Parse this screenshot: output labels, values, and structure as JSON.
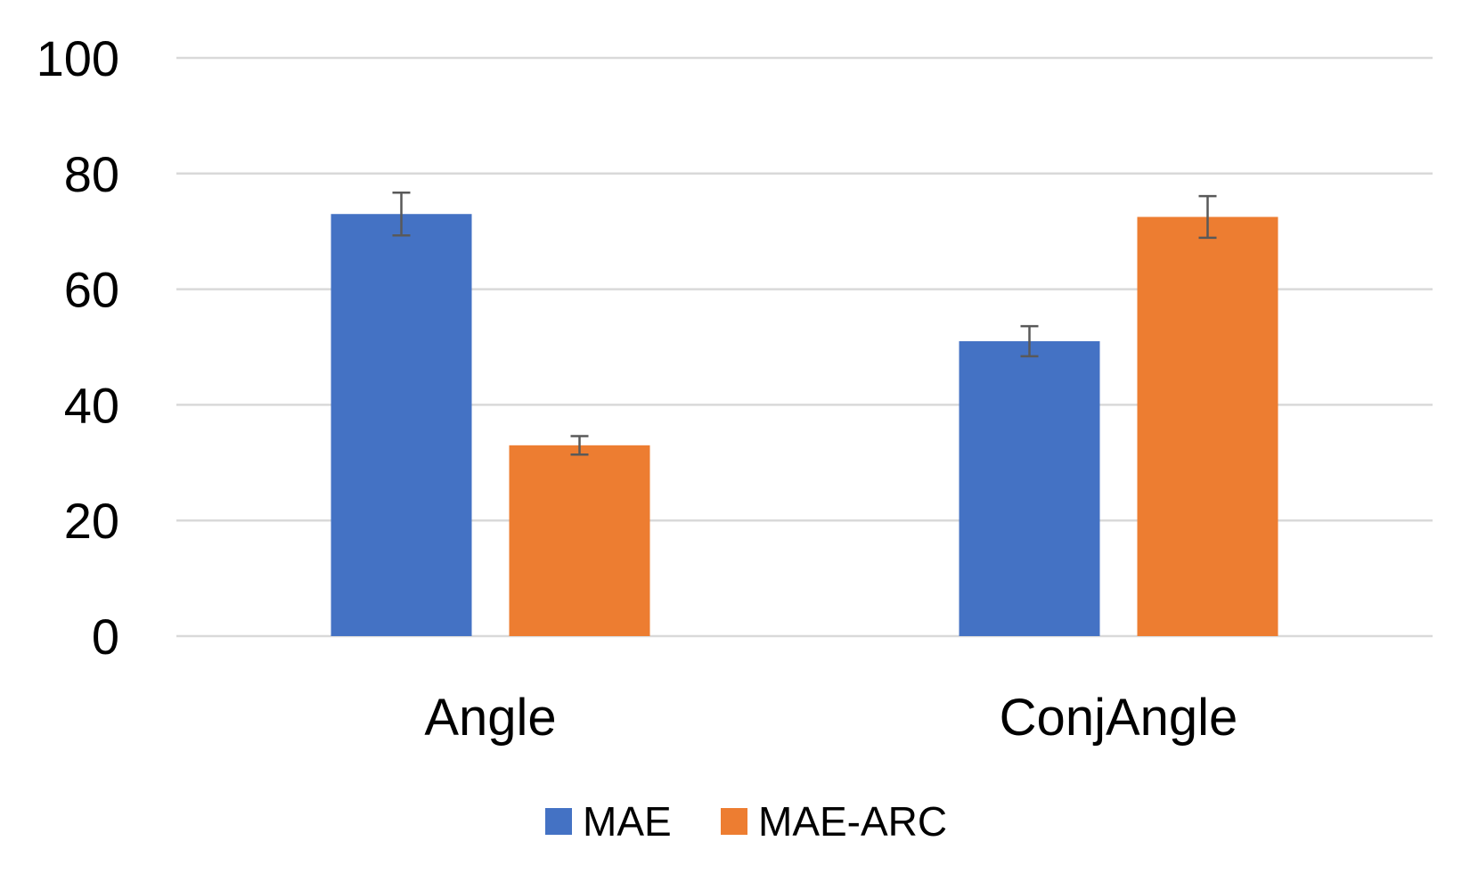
{
  "chart_data": {
    "type": "bar",
    "categories": [
      "Angle",
      "ConjAngle"
    ],
    "series": [
      {
        "name": "MAE",
        "values": [
          73,
          51
        ],
        "errors": [
          3.7,
          2.6
        ],
        "color": "#4472C4"
      },
      {
        "name": "MAE-ARC",
        "values": [
          33,
          72.5
        ],
        "errors": [
          1.6,
          3.6
        ],
        "color": "#ED7D31"
      }
    ],
    "title": "",
    "xlabel": "",
    "ylabel": "",
    "ylim": [
      0,
      100
    ],
    "yticks": [
      0,
      20,
      40,
      60,
      80,
      100
    ],
    "grid": true,
    "legend_position": "bottom",
    "gridline_color": "#D9D9D9",
    "errorbar_color": "#595959"
  }
}
